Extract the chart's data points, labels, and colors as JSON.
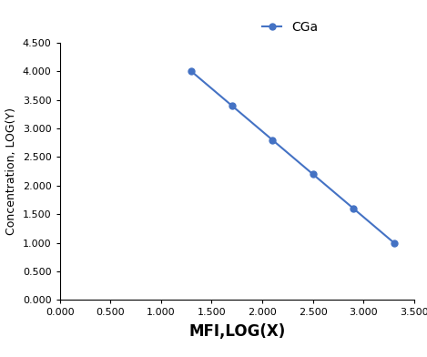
{
  "x": [
    1.3,
    1.7,
    2.1,
    2.5,
    2.9,
    3.3
  ],
  "y": [
    4.0,
    3.4,
    2.8,
    2.2,
    1.6,
    1.0
  ],
  "line_color": "#4472C4",
  "marker": "o",
  "marker_size": 5,
  "legend_label": "CGa",
  "xlabel": "MFI,LOG(X)",
  "ylabel": "Concentration, LOG(Y)",
  "xlim": [
    0.0,
    3.5
  ],
  "ylim": [
    0.0,
    4.5
  ],
  "xticks": [
    0.0,
    0.5,
    1.0,
    1.5,
    2.0,
    2.5,
    3.0,
    3.5
  ],
  "yticks": [
    0.0,
    0.5,
    1.0,
    1.5,
    2.0,
    2.5,
    3.0,
    3.5,
    4.0,
    4.5
  ],
  "background_color": "#ffffff",
  "xlabel_fontsize": 12,
  "ylabel_fontsize": 9,
  "tick_labelsize": 8,
  "legend_fontsize": 10,
  "line_width": 1.5
}
